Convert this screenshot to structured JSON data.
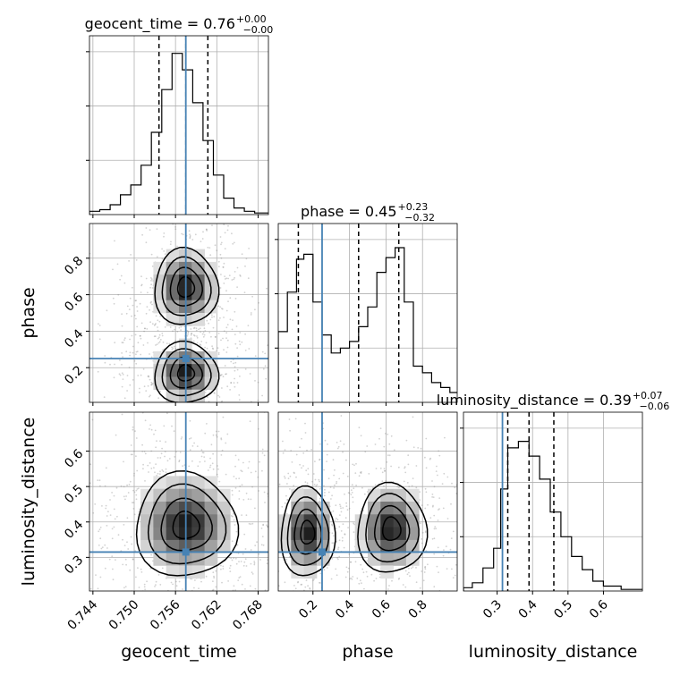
{
  "chart_data": {
    "type": "corner",
    "parameters": [
      "geocent_time",
      "phase",
      "luminosity_distance"
    ],
    "axis_labels": [
      "geocent_time",
      "phase",
      "luminosity_distance"
    ],
    "titles": [
      {
        "param": "geocent_time",
        "base": "geocent_time = 0.76",
        "sup": "+0.00",
        "sub": "−0.00"
      },
      {
        "param": "phase",
        "base": "phase = 0.45",
        "sup": "+0.23",
        "sub": "−0.32"
      },
      {
        "param": "luminosity_distance",
        "base": "luminosity_distance = 0.39",
        "sup": "+0.07",
        "sub": "−0.06"
      }
    ],
    "ranges": {
      "geocent_time": [
        0.7435,
        0.7695
      ],
      "phase": [
        0.01,
        0.99
      ],
      "luminosity_distance": [
        0.205,
        0.71
      ]
    },
    "ticks": {
      "geocent_time": [
        "0.744",
        "0.750",
        "0.756",
        "0.762",
        "0.768"
      ],
      "phase": [
        "0.2",
        "0.4",
        "0.6",
        "0.8"
      ],
      "luminosity_distance": [
        "0.3",
        "0.4",
        "0.5",
        "0.6"
      ]
    },
    "injection": {
      "geocent_time": 0.7575,
      "phase": 0.25,
      "luminosity_distance": 0.315
    },
    "quantiles": {
      "geocent_time": [
        0.7536,
        0.7575,
        0.7607
      ],
      "phase": [
        0.12,
        0.45,
        0.67
      ],
      "luminosity_distance": [
        0.33,
        0.39,
        0.46
      ]
    },
    "marginals": {
      "geocent_time": {
        "edges": [
          0.7435,
          0.745,
          0.7465,
          0.748,
          0.7495,
          0.751,
          0.7525,
          0.754,
          0.7555,
          0.757,
          0.7585,
          0.76,
          0.7615,
          0.763,
          0.7645,
          0.766,
          0.7675,
          0.7695
        ],
        "heights": [
          0.02,
          0.03,
          0.06,
          0.12,
          0.18,
          0.3,
          0.5,
          0.76,
          0.98,
          0.88,
          0.68,
          0.45,
          0.24,
          0.1,
          0.04,
          0.02,
          0.01
        ]
      },
      "phase": {
        "edges": [
          0.01,
          0.06,
          0.11,
          0.15,
          0.2,
          0.25,
          0.3,
          0.35,
          0.4,
          0.45,
          0.5,
          0.55,
          0.6,
          0.65,
          0.7,
          0.75,
          0.8,
          0.85,
          0.9,
          0.95,
          0.99
        ],
        "heights": [
          0.43,
          0.67,
          0.87,
          0.9,
          0.61,
          0.41,
          0.3,
          0.33,
          0.37,
          0.46,
          0.58,
          0.79,
          0.88,
          0.94,
          0.61,
          0.22,
          0.18,
          0.12,
          0.09,
          0.06
        ]
      },
      "luminosity_distance": {
        "edges": [
          0.205,
          0.23,
          0.26,
          0.29,
          0.31,
          0.33,
          0.36,
          0.39,
          0.42,
          0.45,
          0.48,
          0.51,
          0.54,
          0.57,
          0.6,
          0.65,
          0.71
        ],
        "heights": [
          0.02,
          0.05,
          0.14,
          0.26,
          0.62,
          0.87,
          0.91,
          0.82,
          0.68,
          0.48,
          0.33,
          0.21,
          0.13,
          0.06,
          0.03,
          0.01
        ]
      }
    },
    "grid": true,
    "colors": {
      "truth": "#4682b4",
      "density": "#000000",
      "scatter": "#7f7f7f"
    }
  }
}
